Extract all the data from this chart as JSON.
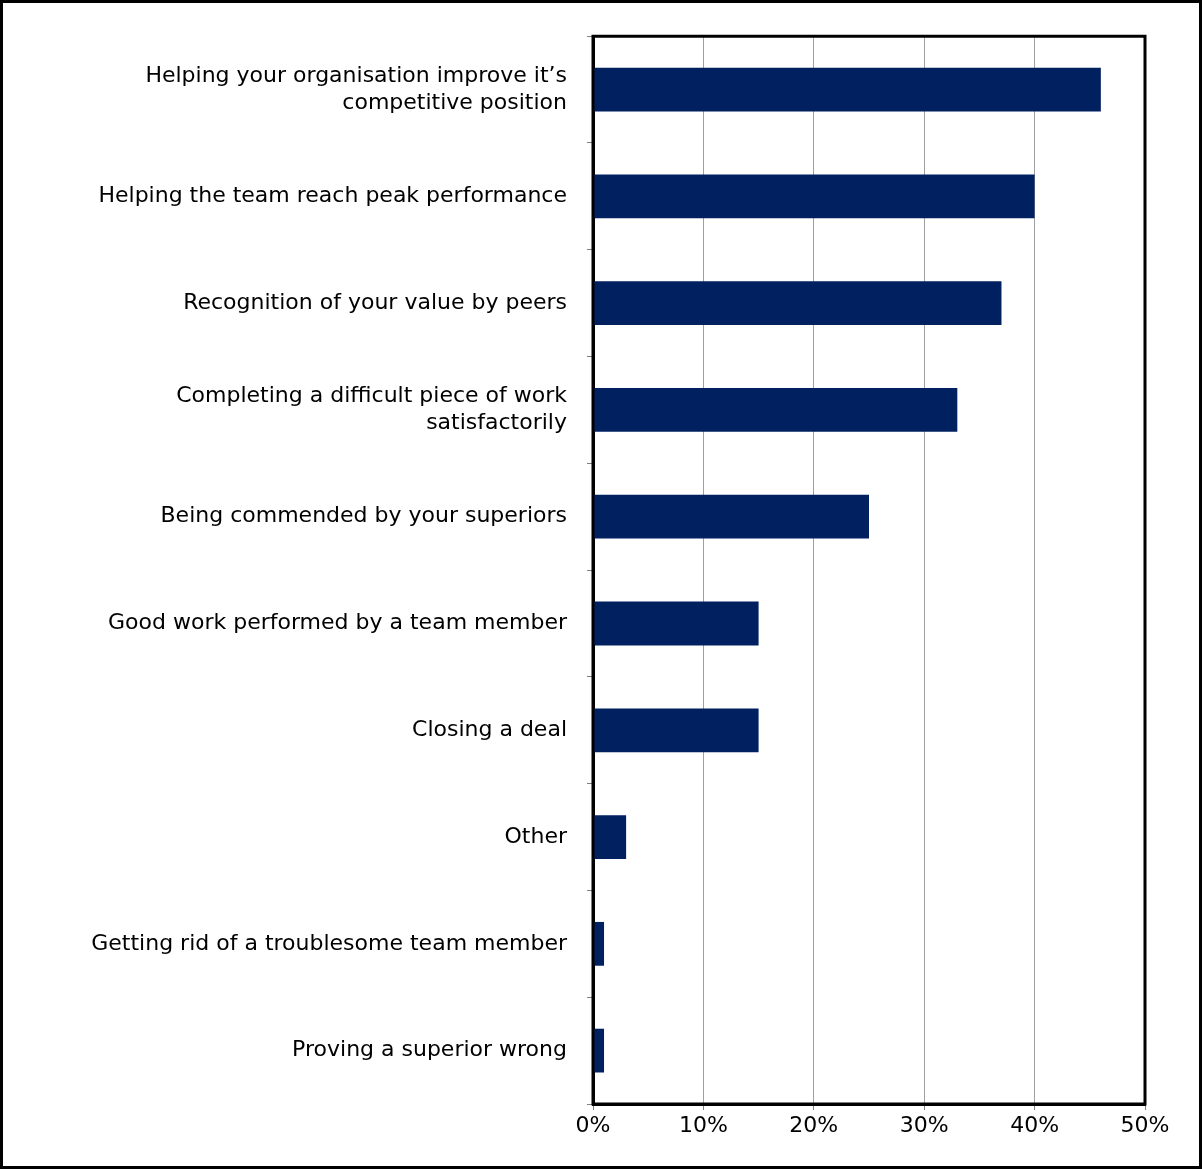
{
  "chart_data": {
    "type": "bar",
    "orientation": "horizontal",
    "categories": [
      "Helping your organisation improve it’s competitive position",
      "Helping the team reach peak performance",
      "Recognition of your value by peers",
      "Completing a difficult piece of work satisfactorily",
      "Being commended by your superiors",
      "Good work performed by a team member",
      "Closing a deal",
      "Other",
      "Getting rid of a troublesome team member",
      "Proving a superior wrong"
    ],
    "values": [
      46,
      40,
      37,
      33,
      25,
      15,
      15,
      3,
      1,
      1
    ],
    "color": "#002060",
    "xlim": [
      0,
      50
    ],
    "xticks": [
      {
        "value": 0,
        "label": "0%"
      },
      {
        "value": 10,
        "label": "10%"
      },
      {
        "value": 20,
        "label": "20%"
      },
      {
        "value": 30,
        "label": "30%"
      },
      {
        "value": 40,
        "label": "40%"
      },
      {
        "value": 50,
        "label": "50%"
      }
    ],
    "grid": "x",
    "legend": false
  }
}
